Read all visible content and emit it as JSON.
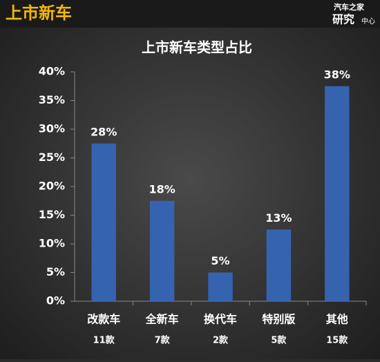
{
  "header": {
    "section": "上市新车",
    "logo_top": "汽车之家",
    "logo_main": "研究",
    "logo_side": "中心"
  },
  "chart_data": {
    "type": "bar",
    "title": "上市新车类型占比",
    "categories": [
      "改款车",
      "全新车",
      "换代车",
      "特别版",
      "其他"
    ],
    "category_notes": [
      "11款",
      "7款",
      "2款",
      "5款",
      "15款"
    ],
    "values": [
      27.5,
      17.5,
      5,
      12.5,
      37.5
    ],
    "value_labels": [
      "28%",
      "18%",
      "5%",
      "13%",
      "38%"
    ],
    "color": "#3563b0",
    "ylim": [
      0,
      40
    ],
    "yticks": [
      {
        "value": 0,
        "label": "0%"
      },
      {
        "value": 5,
        "label": "5%"
      },
      {
        "value": 10,
        "label": "10%"
      },
      {
        "value": 15,
        "label": "15%"
      },
      {
        "value": 20,
        "label": "20%"
      },
      {
        "value": 25,
        "label": "25%"
      },
      {
        "value": 30,
        "label": "30%"
      },
      {
        "value": 35,
        "label": "35%"
      },
      {
        "value": 40,
        "label": "40%"
      }
    ]
  }
}
